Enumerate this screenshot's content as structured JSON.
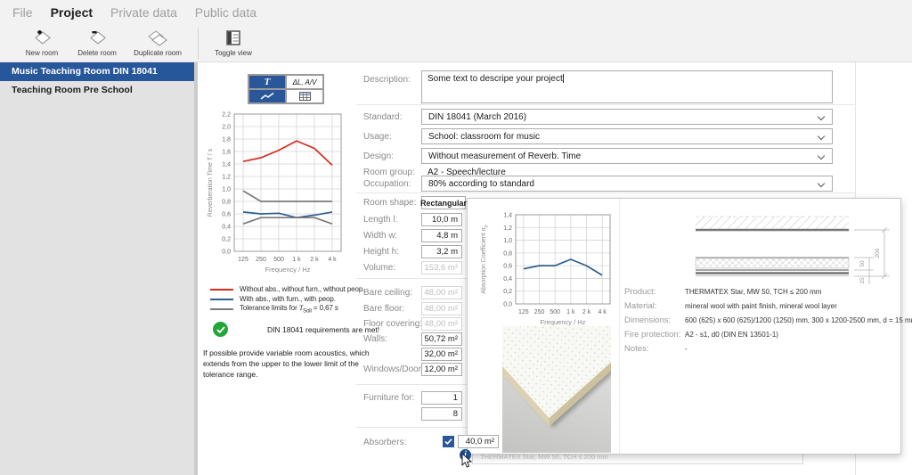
{
  "menu": {
    "items": [
      {
        "label": "File"
      },
      {
        "label": "Project",
        "active": true
      },
      {
        "label": "Private data"
      },
      {
        "label": "Public data"
      }
    ]
  },
  "toolbar": {
    "new_room": "New room",
    "delete_room": "Delete room",
    "duplicate_room": "Duplicate room",
    "toggle_view": "Toggle view"
  },
  "sidebar": {
    "items": [
      {
        "label": "Music Teaching Room DIN 18041",
        "selected": true
      },
      {
        "label": "Teaching Room Pre School",
        "selected": false
      }
    ]
  },
  "view_buttons": {
    "t": "T",
    "dl": "ΔL, A/V"
  },
  "accent_color": "#27579b",
  "legend": {
    "items": [
      {
        "label": "Without abs., without furn., without peop.",
        "color": "#d42b1e"
      },
      {
        "label": "With abs., with furn., with peop.",
        "color": "#2d5f91"
      },
      {
        "pre": "Tolerance limits for ",
        "t": "T",
        "sub": "Soll",
        "post": " = 0,67 s",
        "color": "#7a7a7a"
      }
    ]
  },
  "status": {
    "message": "DIN 18041 requirements are met!",
    "color": "#23a638"
  },
  "note": "If possible provide variable room acoustics, which extends from the upper to the lower limit of the tolerance range.",
  "form": {
    "description_label": "Description:",
    "description_value": "Some text to descripe your project",
    "standard_label": "Standard:",
    "standard_value": "DIN 18041 (March 2016)",
    "usage_label": "Usage:",
    "usage_value": "School: classroom for music",
    "design_label": "Design:",
    "design_value": "Without measurement of Reverb. Time",
    "room_group_label": "Room group:",
    "room_group_value": "A2 - Speech/lecture",
    "occupation_label": "Occupation:",
    "occupation_value": "80% according to standard"
  },
  "room": {
    "shape_label": "Room shape:",
    "shape_value": "Rectangular",
    "length_label": "Length l:",
    "length_value": "10,0 m",
    "width_label": "Width w:",
    "width_value": "4,8 m",
    "height_label": "Height h:",
    "height_value": "3,2 m",
    "volume_label": "Volume:",
    "volume_value": "153,6 m³"
  },
  "surfaces": {
    "bare_ceiling_label": "Bare ceiling:",
    "bare_ceiling_value": "48,00 m²",
    "bare_floor_label": "Bare floor:",
    "bare_floor_value": "48,00 m²",
    "floor_covering_label": "Floor covering:",
    "floor_covering_value": "48,00 m²",
    "walls_label": "Walls:",
    "walls_value": "50,72 m²",
    "walls_value2": "32,00 m²",
    "windows_doors_label": "Windows/Doors:",
    "windows_doors_value": "12,00 m²"
  },
  "furniture": {
    "label": "Furniture for:",
    "value1": "1",
    "value2": "8"
  },
  "absorbers": {
    "label": "Absorbers:",
    "checked": true,
    "value": "40,0 m²",
    "product_row_text": "THERMATEX Star, MW 50, TCH ≤ 200 mm"
  },
  "product_panel": {
    "details": [
      {
        "label": "Product:",
        "value": "THERMATEX Star, MW 50, TCH ≤ 200 mm"
      },
      {
        "label": "Material:",
        "value": "mineral wool with paint finish, mineral wool layer"
      },
      {
        "label": "Dimensions:",
        "value": "600 (625) x 600 (625)/1200 (1250) mm, 300 x 1200-2500 mm, d = 15 mm"
      },
      {
        "label": "Fire protection:",
        "value": "A2 - s1, d0 (DIN EN 13501-1)"
      },
      {
        "label": "Notes:",
        "value": "-"
      }
    ],
    "drawing_dims": {
      "total": "200",
      "layer": "50",
      "panel": "15"
    }
  },
  "chart_data": [
    {
      "id": "reverberation_time",
      "type": "line",
      "xlabel": "Frequency / Hz",
      "ylabel": "Reverberation Time T / s",
      "categories": [
        "125",
        "250",
        "500",
        "1 k",
        "2 k",
        "4 k"
      ],
      "ylim": [
        0,
        2.2
      ],
      "ytick_step": 0.2,
      "grid": true,
      "series": [
        {
          "name": "Without abs., without furn., without peop.",
          "color": "#d42b1e",
          "values": [
            1.44,
            1.5,
            1.62,
            1.77,
            1.65,
            1.38
          ]
        },
        {
          "name": "With abs., with furn., with peop.",
          "color": "#2d5f91",
          "values": [
            0.63,
            0.6,
            0.61,
            0.54,
            0.58,
            0.63
          ]
        },
        {
          "name": "Tolerance limit upper (T_Soll = 0,67 s)",
          "color": "#7a7a7a",
          "values": [
            0.97,
            0.8,
            0.8,
            0.8,
            0.8,
            0.8
          ]
        },
        {
          "name": "Tolerance limit lower (T_Soll = 0,67 s)",
          "color": "#7a7a7a",
          "values": [
            0.44,
            0.54,
            0.54,
            0.54,
            0.54,
            0.44
          ]
        }
      ]
    },
    {
      "id": "absorption_coefficient",
      "type": "line",
      "xlabel": "Frequency / Hz",
      "ylabel": "Absorption Coefficient α",
      "ylabel_sub": "p",
      "categories": [
        "125",
        "250",
        "500",
        "1 k",
        "2 k",
        "4 k"
      ],
      "ylim": [
        0,
        1.4
      ],
      "ytick_step": 0.2,
      "grid": true,
      "series": [
        {
          "name": "THERMATEX Star, MW 50, TCH ≤ 200 mm",
          "color": "#2d5f91",
          "values": [
            0.55,
            0.6,
            0.6,
            0.7,
            0.6,
            0.45
          ]
        }
      ]
    }
  ]
}
